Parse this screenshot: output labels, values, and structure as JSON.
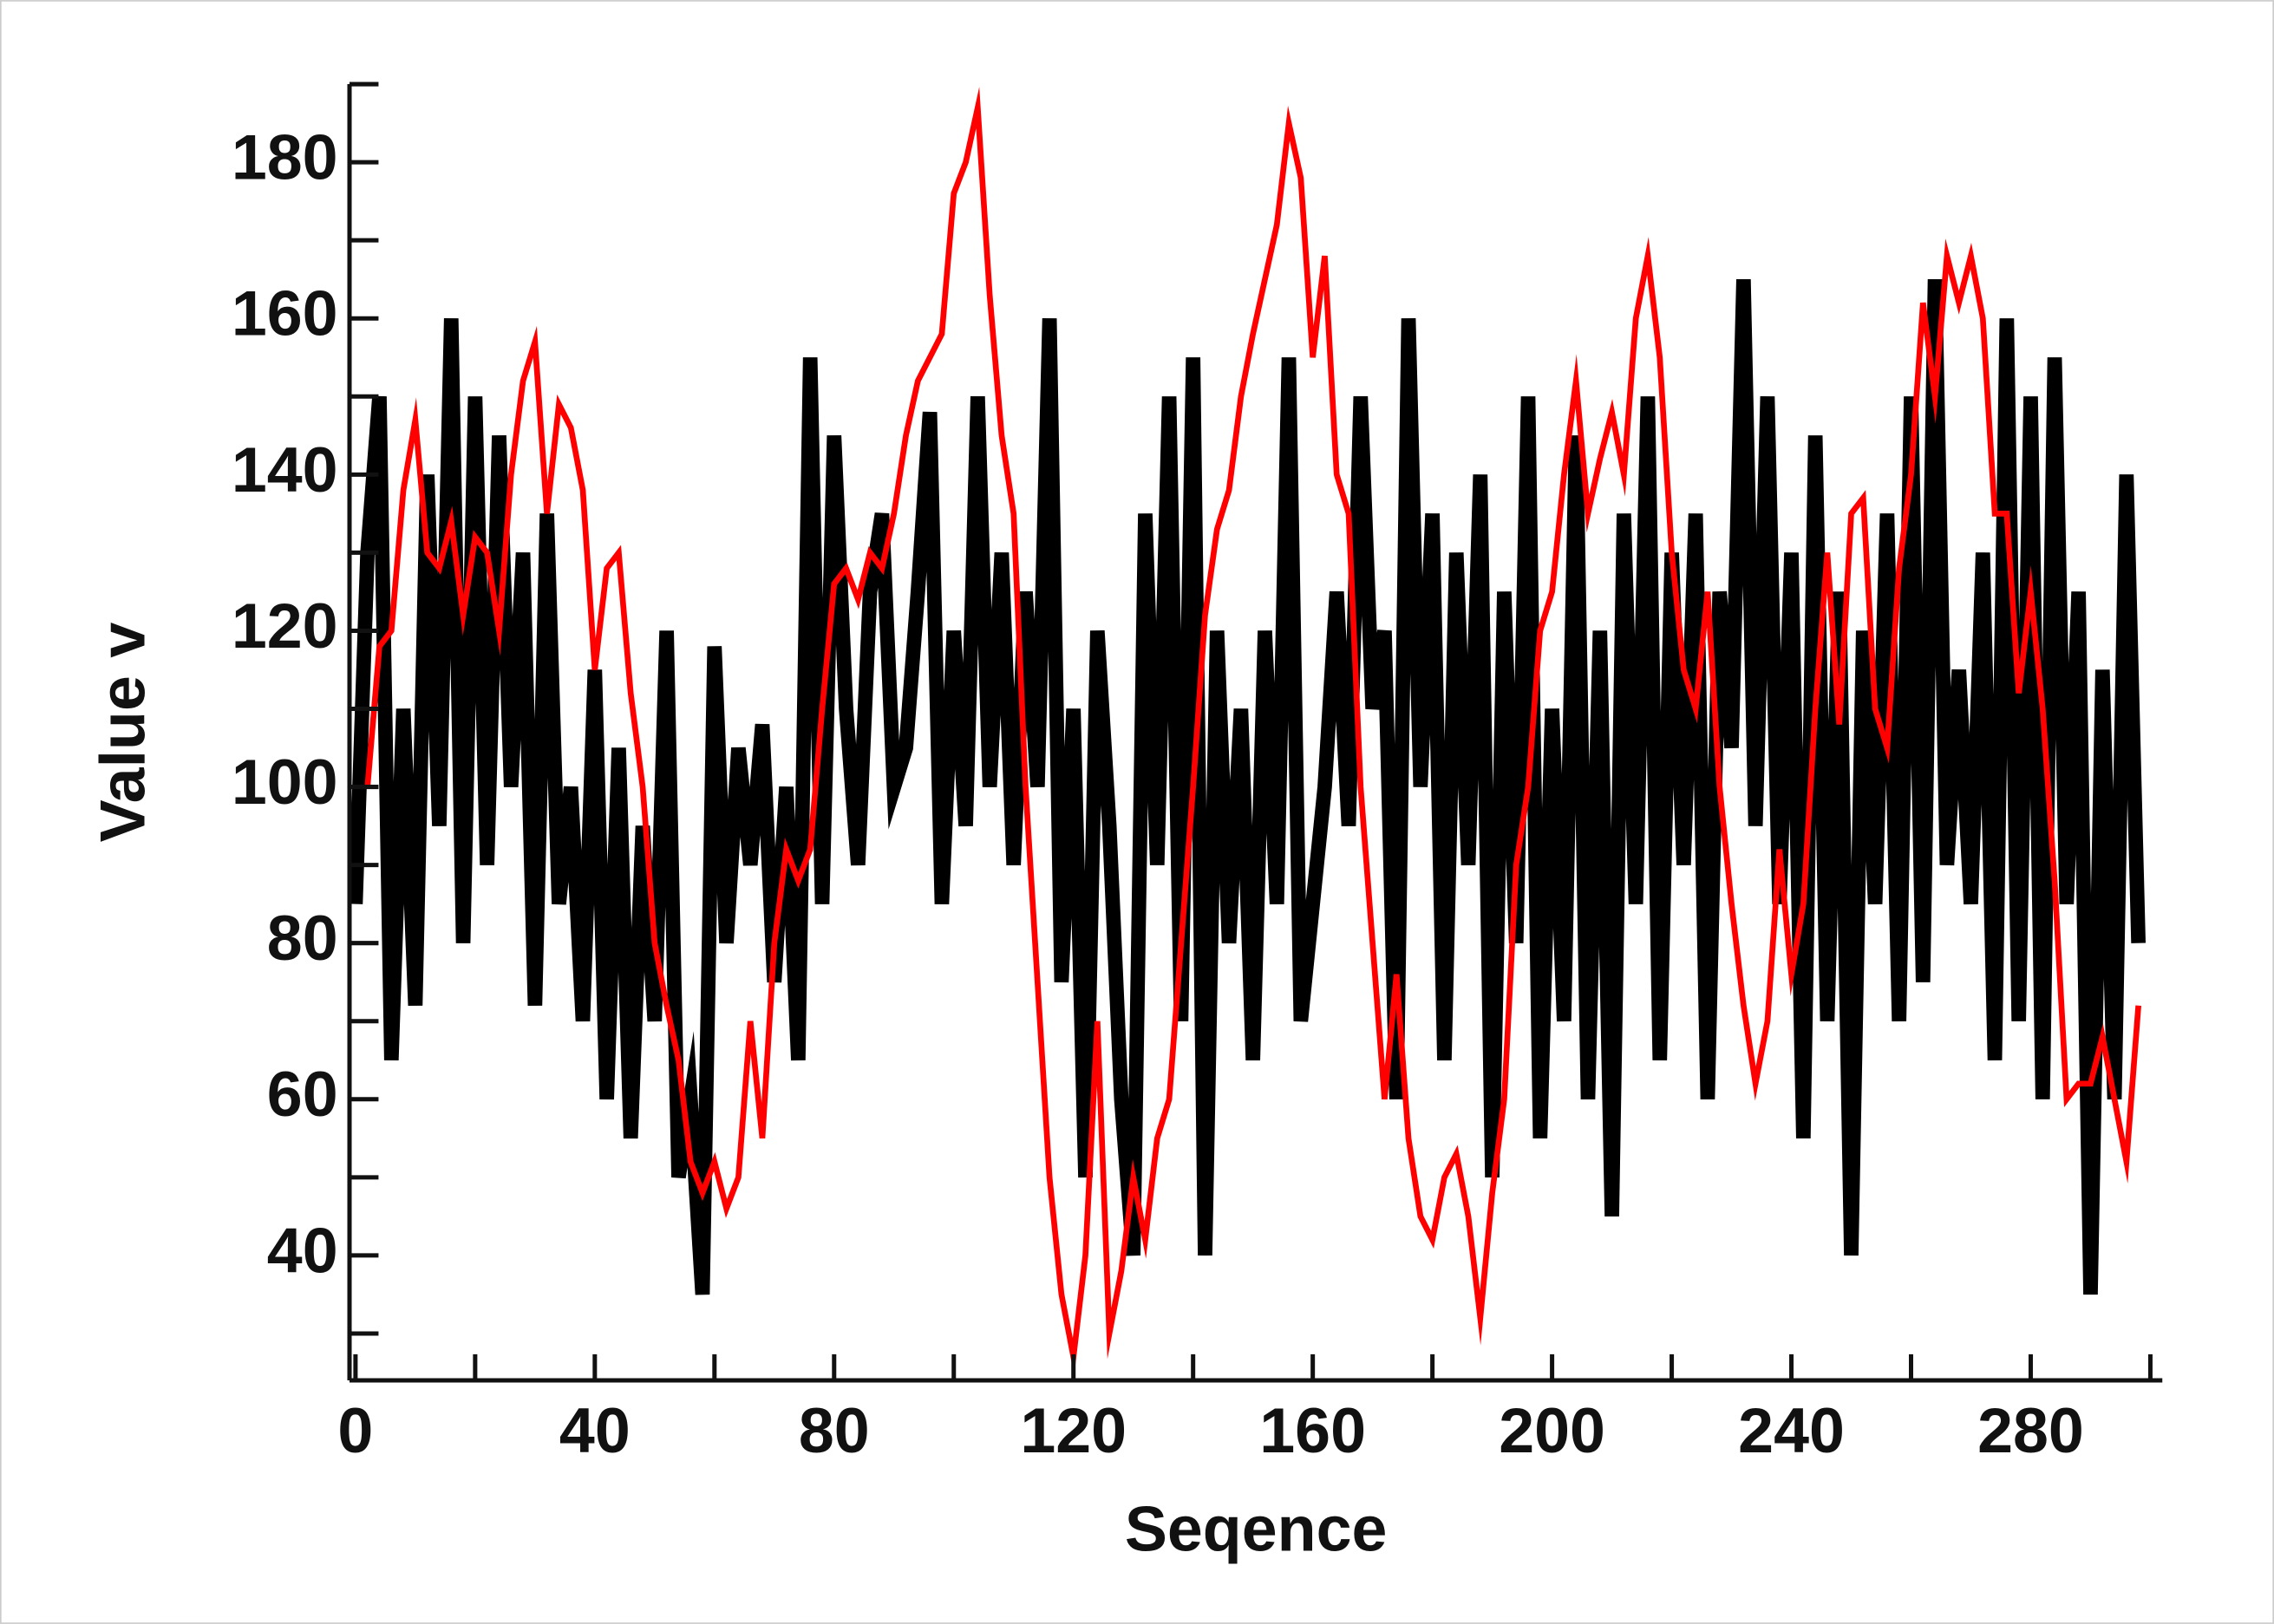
{
  "chart_data": {
    "type": "line",
    "xlabel": "Seqence",
    "ylabel": "Value v",
    "xlim": [
      -1,
      302
    ],
    "ylim": [
      24,
      190
    ],
    "xticks": [
      0,
      40,
      80,
      120,
      160,
      200,
      240,
      280
    ],
    "x_minor_ticks": [
      20,
      60,
      100,
      140,
      180,
      220,
      260,
      300
    ],
    "yticks": [
      40,
      60,
      80,
      100,
      120,
      140,
      160,
      180
    ],
    "y_minor_ticks": [
      30,
      50,
      70,
      90,
      110,
      130,
      150,
      170,
      190
    ],
    "x": [
      0,
      2,
      4,
      6,
      8,
      10,
      12,
      14,
      16,
      18,
      20,
      22,
      24,
      26,
      28,
      30,
      32,
      34,
      36,
      38,
      40,
      42,
      44,
      46,
      48,
      50,
      52,
      54,
      56,
      58,
      60,
      62,
      64,
      66,
      68,
      70,
      72,
      74,
      76,
      78,
      80,
      82,
      84,
      86,
      88,
      90,
      92,
      94,
      96,
      98,
      100,
      102,
      104,
      106,
      108,
      110,
      112,
      114,
      116,
      118,
      120,
      122,
      124,
      126,
      128,
      130,
      132,
      134,
      136,
      138,
      140,
      142,
      144,
      146,
      148,
      150,
      152,
      154,
      156,
      158,
      160,
      162,
      164,
      166,
      168,
      170,
      172,
      174,
      176,
      178,
      180,
      182,
      184,
      186,
      188,
      190,
      192,
      194,
      196,
      198,
      200,
      202,
      204,
      206,
      208,
      210,
      212,
      214,
      216,
      218,
      220,
      222,
      224,
      226,
      228,
      230,
      232,
      234,
      236,
      238,
      240,
      242,
      244,
      246,
      248,
      250,
      252,
      254,
      256,
      258,
      260,
      262,
      264,
      266,
      268,
      270,
      272,
      274,
      276,
      278,
      280,
      282,
      284,
      286,
      288,
      290,
      292,
      294,
      296,
      298
    ],
    "series": [
      {
        "color": "#000000",
        "width": 10,
        "values": [
          85,
          130,
          150,
          65,
          110,
          72,
          140,
          95,
          160,
          80,
          150,
          90,
          145,
          100,
          130,
          72,
          135,
          85,
          100,
          70,
          115,
          60,
          105,
          55,
          95,
          70,
          120,
          50,
          60,
          35,
          118,
          80,
          105,
          90,
          108,
          75,
          100,
          65,
          155,
          85,
          145,
          110,
          90,
          125,
          135,
          100,
          105,
          125,
          148,
          85,
          120,
          95,
          150,
          100,
          130,
          90,
          125,
          100,
          160,
          75,
          110,
          50,
          120,
          95,
          60,
          40,
          135,
          90,
          150,
          70,
          155,
          40,
          120,
          80,
          110,
          65,
          120,
          85,
          155,
          70,
          85,
          100,
          125,
          95,
          150,
          110,
          120,
          60,
          160,
          100,
          135,
          65,
          130,
          90,
          140,
          50,
          125,
          80,
          150,
          55,
          110,
          70,
          145,
          60,
          120,
          45,
          135,
          85,
          150,
          65,
          130,
          90,
          135,
          60,
          125,
          105,
          165,
          95,
          150,
          85,
          130,
          55,
          145,
          70,
          125,
          40,
          120,
          85,
          135,
          70,
          150,
          75,
          165,
          90,
          115,
          85,
          130,
          65,
          160,
          70,
          150,
          60,
          155,
          85,
          125,
          35,
          115,
          60,
          140,
          80
        ]
      },
      {
        "color": "#ff0000",
        "width": 4,
        "values": [
          null,
          100,
          118,
          120,
          138,
          147,
          130,
          128,
          134,
          122,
          132,
          130,
          120,
          140,
          152,
          157,
          135,
          149,
          146,
          138,
          115,
          128,
          130,
          112,
          100,
          80,
          72,
          65,
          52,
          48,
          52,
          46,
          50,
          70,
          55,
          80,
          92,
          88,
          92,
          110,
          126,
          128,
          124,
          130,
          128,
          135,
          145,
          152,
          155,
          158,
          176,
          180,
          187,
          163,
          145,
          135,
          100,
          75,
          50,
          35,
          27,
          40,
          70,
          30,
          38,
          50,
          42,
          55,
          60,
          80,
          100,
          122,
          133,
          138,
          150,
          158,
          165,
          172,
          185,
          178,
          155,
          168,
          140,
          135,
          100,
          80,
          60,
          76,
          55,
          45,
          42,
          50,
          53,
          45,
          32,
          48,
          60,
          90,
          100,
          120,
          125,
          140,
          152,
          135,
          142,
          148,
          140,
          160,
          168,
          155,
          130,
          115,
          110,
          125,
          100,
          85,
          72,
          62,
          70,
          92,
          76,
          85,
          110,
          130,
          108,
          135,
          137,
          110,
          105,
          128,
          140,
          162,
          150,
          168,
          162,
          168,
          160,
          135,
          135,
          112,
          125,
          110,
          88,
          60,
          62,
          62,
          68,
          60,
          52,
          72
        ]
      }
    ]
  }
}
